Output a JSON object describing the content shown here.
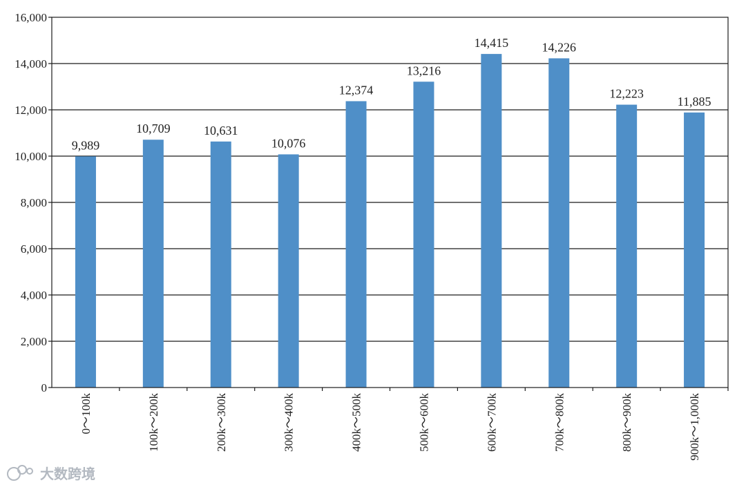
{
  "chart_data": {
    "type": "bar",
    "title": "",
    "xlabel": "",
    "ylabel": "",
    "categories": [
      "0～100k",
      "100k～200k",
      "200k～300k",
      "300k～400k",
      "400k～500k",
      "500k～600k",
      "600k～700k",
      "700k～800k",
      "800k～900k",
      "900k～1,000k"
    ],
    "values": [
      9989,
      10709,
      10631,
      10076,
      12374,
      13216,
      14415,
      14226,
      12223,
      11885
    ],
    "value_labels": [
      "9,989",
      "10,709",
      "10,631",
      "10,076",
      "12,374",
      "13,216",
      "14,415",
      "14,226",
      "12,223",
      "11,885"
    ],
    "ylim": [
      0,
      16000
    ],
    "yticks": [
      0,
      2000,
      4000,
      6000,
      8000,
      10000,
      12000,
      14000,
      16000
    ],
    "ytick_labels": [
      "0",
      "2,000",
      "4,000",
      "6,000",
      "8,000",
      "10,000",
      "12,000",
      "14,000",
      "16,000"
    ],
    "grid": true,
    "bar_color": "#4f8fc8",
    "grid_color": "#1a1a1a"
  },
  "watermark": {
    "text": "大数跨境",
    "icon": "watermark-logo-icon"
  }
}
